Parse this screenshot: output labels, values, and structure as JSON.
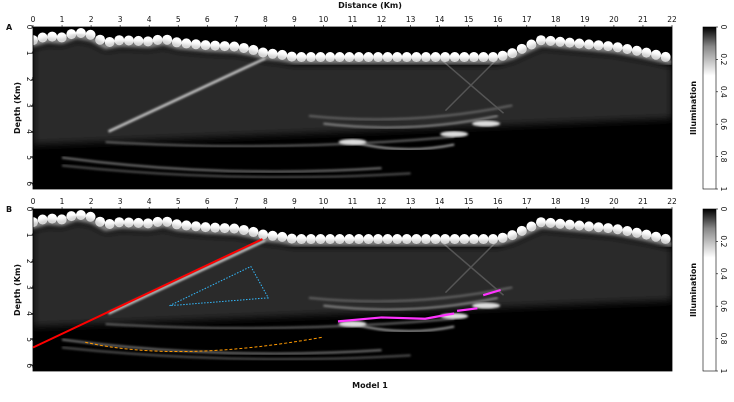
{
  "figure": {
    "x_axis_title": "Distance (Km)",
    "y_axis_title": "Depth (Km)",
    "caption_label": "Model 1",
    "x_ticks": [
      "0",
      "1",
      "2",
      "3",
      "4",
      "5",
      "6",
      "7",
      "8",
      "9",
      "10",
      "11",
      "12",
      "13",
      "14",
      "15",
      "16",
      "17",
      "18",
      "19",
      "20",
      "21",
      "22"
    ],
    "y_ticks": [
      "0",
      "1",
      "2",
      "3",
      "4",
      "5",
      "6"
    ],
    "x_range_km": [
      0,
      22
    ],
    "depth_range_km": [
      0,
      6.2
    ],
    "colormap": "grayscale (black 0 to white 1)"
  },
  "panels": [
    {
      "label": "A",
      "overlays": []
    },
    {
      "label": "B",
      "overlays": [
        {
          "type": "solid line",
          "color": "#ff0000"
        },
        {
          "type": "dotted polygon",
          "color": "#33bbff"
        },
        {
          "type": "dashed curve",
          "color": "#ff9900"
        },
        {
          "type": "thick segments",
          "color": "#ff33ff"
        }
      ]
    }
  ],
  "colorbar": {
    "title": "Illumination",
    "ticks": [
      "0",
      "0.2",
      "0.4",
      "0.6",
      "0.8",
      "1"
    ],
    "range": [
      0,
      1
    ]
  }
}
